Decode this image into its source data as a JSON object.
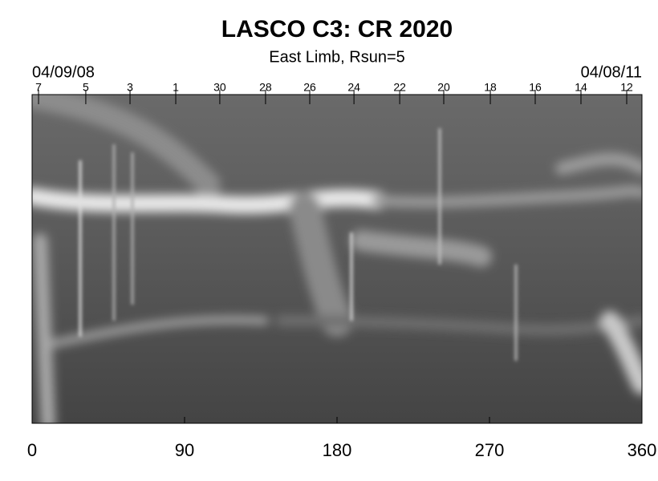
{
  "chart_data": {
    "type": "image",
    "title": "LASCO C3: CR 2020",
    "subtitle": "East Limb, Rsun=5",
    "start_label": "04/09/08",
    "end_label": "04/08/11",
    "xlim": [
      0,
      360
    ],
    "xticks": [
      0,
      90,
      180,
      270,
      360
    ],
    "top_ticks": [
      {
        "value": 3.8,
        "label": "7"
      },
      {
        "value": 31.7,
        "label": "5"
      },
      {
        "value": 57.8,
        "label": "3"
      },
      {
        "value": 84.8,
        "label": "1"
      },
      {
        "value": 110.8,
        "label": "30"
      },
      {
        "value": 137.8,
        "label": "28"
      },
      {
        "value": 163.9,
        "label": "26"
      },
      {
        "value": 190,
        "label": "24"
      },
      {
        "value": 217,
        "label": "22"
      },
      {
        "value": 243,
        "label": "20"
      },
      {
        "value": 270.5,
        "label": "18"
      },
      {
        "value": 297,
        "label": "16"
      },
      {
        "value": 324,
        "label": "14"
      },
      {
        "value": 351,
        "label": "12"
      }
    ]
  }
}
